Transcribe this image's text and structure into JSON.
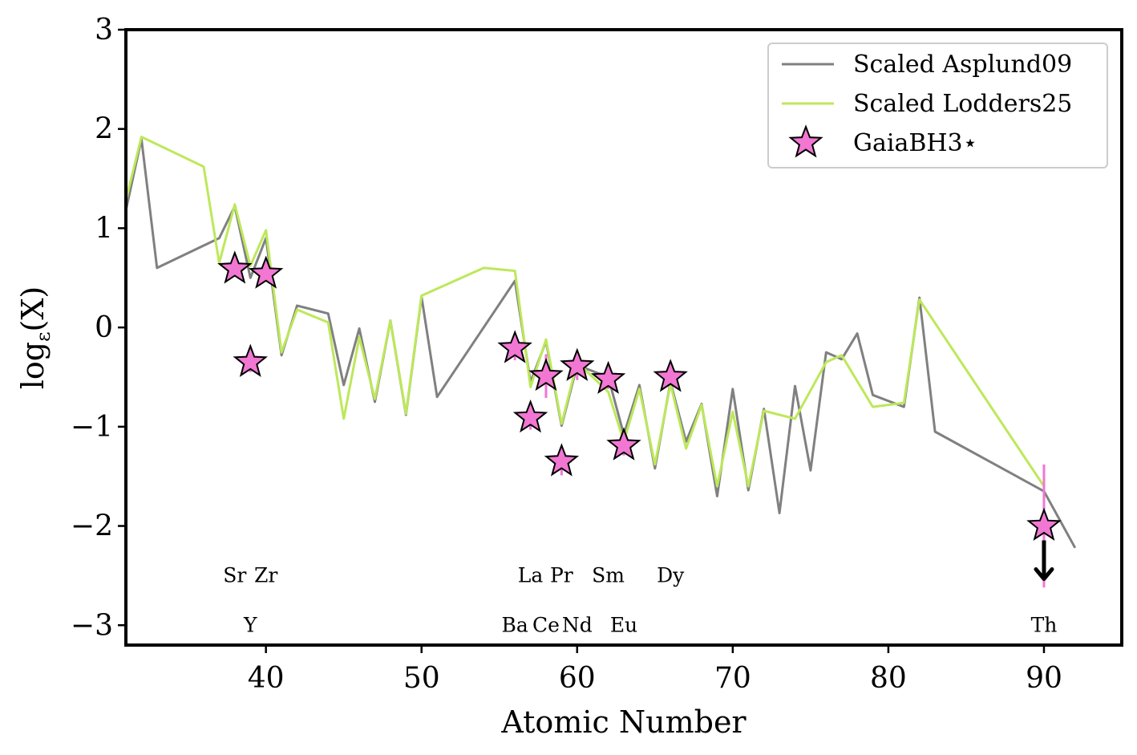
{
  "chart_data": {
    "type": "line",
    "xlabel": "Atomic Number",
    "ylabel_main": "log",
    "ylabel_sub": "ε",
    "ylabel_tail": "(X)",
    "xlim": [
      31,
      95
    ],
    "ylim": [
      -3.2,
      3.0
    ],
    "xticks": [
      40,
      50,
      60,
      70,
      80,
      90
    ],
    "yticks": [
      3,
      2,
      1,
      0,
      -1,
      -2,
      -3
    ],
    "ytick_labels": [
      "3",
      "2",
      "1",
      "0",
      "−1",
      "−2",
      "−3"
    ],
    "series": [
      {
        "name": "Scaled Asplund09",
        "color": "#808080",
        "x": [
          31,
          32,
          33,
          37,
          38,
          39,
          40,
          41,
          42,
          44,
          45,
          46,
          47,
          48,
          49,
          50,
          51,
          56,
          57,
          58,
          59,
          60,
          62,
          63,
          64,
          65,
          66,
          67,
          68,
          69,
          70,
          71,
          72,
          73,
          74,
          75,
          76,
          77,
          78,
          79,
          81,
          82,
          83,
          90,
          92
        ],
        "y": [
          1.18,
          1.9,
          0.6,
          0.9,
          1.22,
          0.5,
          0.9,
          -0.28,
          0.22,
          0.14,
          -0.58,
          -0.01,
          -0.75,
          0.07,
          -0.88,
          0.31,
          -0.7,
          0.47,
          -0.55,
          -0.14,
          -0.99,
          -0.38,
          -0.5,
          -1.08,
          -0.58,
          -1.42,
          -0.55,
          -1.15,
          -0.77,
          -1.7,
          -0.62,
          -1.64,
          -0.82,
          -1.87,
          -0.59,
          -1.44,
          -0.25,
          -0.32,
          -0.06,
          -0.68,
          -0.8,
          0.3,
          -1.05,
          -1.65,
          -2.22
        ]
      },
      {
        "name": "Scaled Lodders25",
        "color": "#bde85a",
        "x": [
          31,
          32,
          36,
          37,
          38,
          39,
          40,
          41,
          42,
          44,
          45,
          46,
          47,
          48,
          49,
          50,
          54,
          56,
          57,
          58,
          59,
          60,
          62,
          63,
          64,
          65,
          66,
          67,
          68,
          69,
          70,
          71,
          72,
          74,
          76,
          77,
          79,
          81,
          82,
          90
        ],
        "y": [
          1.28,
          1.92,
          1.62,
          0.65,
          1.24,
          0.62,
          0.98,
          -0.25,
          0.18,
          0.05,
          -0.92,
          -0.1,
          -0.72,
          0.07,
          -0.87,
          0.32,
          0.6,
          0.57,
          -0.6,
          -0.12,
          -0.97,
          -0.35,
          -0.65,
          -1.15,
          -0.62,
          -1.38,
          -0.57,
          -1.22,
          -0.78,
          -1.6,
          -0.85,
          -1.6,
          -0.84,
          -0.92,
          -0.35,
          -0.28,
          -0.8,
          -0.76,
          0.28,
          -1.6
        ]
      }
    ],
    "stars": {
      "name": "GaiaBH3⋆",
      "color": "#f177d2",
      "points": [
        {
          "x": 38,
          "y": 0.59,
          "err": 0.05,
          "label": "Sr",
          "row": 1
        },
        {
          "x": 39,
          "y": -0.35,
          "err": 0.1,
          "label": "Y",
          "row": 2
        },
        {
          "x": 40,
          "y": 0.54,
          "err": 0.05,
          "label": "Zr",
          "row": 1
        },
        {
          "x": 56,
          "y": -0.21,
          "err": 0.12,
          "label": "Ba",
          "row": 2
        },
        {
          "x": 57,
          "y": -0.91,
          "err": 0.12,
          "label": "La",
          "row": 1
        },
        {
          "x": 58,
          "y": -0.49,
          "err": 0.22,
          "label": "Ce",
          "row": 2
        },
        {
          "x": 59,
          "y": -1.35,
          "err": 0.14,
          "label": "Pr",
          "row": 1
        },
        {
          "x": 60,
          "y": -0.39,
          "err": 0.14,
          "label": "Nd",
          "row": 2
        },
        {
          "x": 62,
          "y": -0.52,
          "err": 0.1,
          "label": "Sm",
          "row": 1
        },
        {
          "x": 63,
          "y": -1.19,
          "err": 0.1,
          "label": "Eu",
          "row": 2
        },
        {
          "x": 66,
          "y": -0.5,
          "err": 0.08,
          "label": "Dy",
          "row": 1
        },
        {
          "x": 90,
          "y": -2.0,
          "err": 0.62,
          "label": "Th",
          "row": 2,
          "upper_limit": true
        }
      ]
    },
    "legend_position": "upper right",
    "row1_label_y": -2.5,
    "row2_label_y": -3.0
  }
}
